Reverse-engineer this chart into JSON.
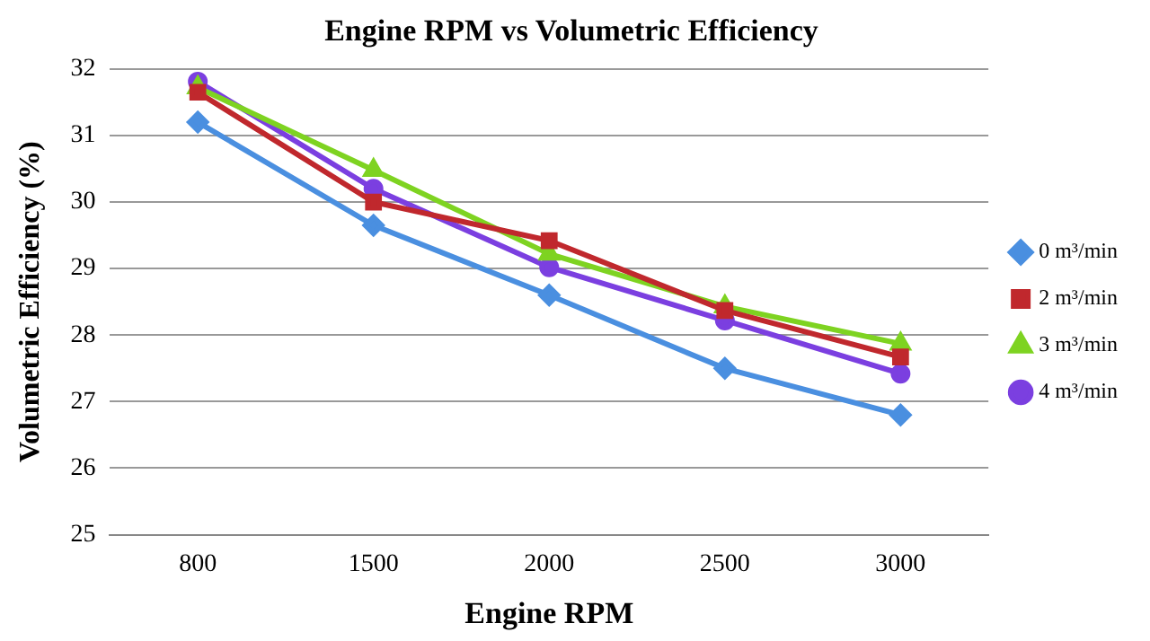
{
  "chart_data": {
    "type": "line",
    "title": "Engine RPM vs Volumetric Efficiency",
    "xlabel": "Engine RPM",
    "ylabel": "Volumetric Efficiency (%)",
    "categories": [
      "800",
      "1500",
      "2000",
      "2500",
      "3000"
    ],
    "ylim": [
      25,
      32
    ],
    "yticks": [
      25,
      26,
      27,
      28,
      29,
      30,
      31,
      32
    ],
    "grid": "y",
    "legend": "right",
    "series": [
      {
        "name": "0 m³/min",
        "color": "#4a8fe0",
        "marker": "diamond",
        "values": [
          31.2,
          29.65,
          28.6,
          27.5,
          26.8
        ]
      },
      {
        "name": "2 m³/min",
        "color": "#c0282d",
        "marker": "square",
        "values": [
          31.65,
          30.0,
          29.42,
          28.37,
          27.67
        ]
      },
      {
        "name": "3 m³/min",
        "color": "#7ed321",
        "marker": "triangle",
        "values": [
          31.72,
          30.48,
          29.22,
          28.43,
          27.87
        ]
      },
      {
        "name": "4 m³/min",
        "color": "#7b3fe0",
        "marker": "circle",
        "values": [
          31.81,
          30.2,
          29.02,
          28.22,
          27.42
        ]
      }
    ]
  }
}
